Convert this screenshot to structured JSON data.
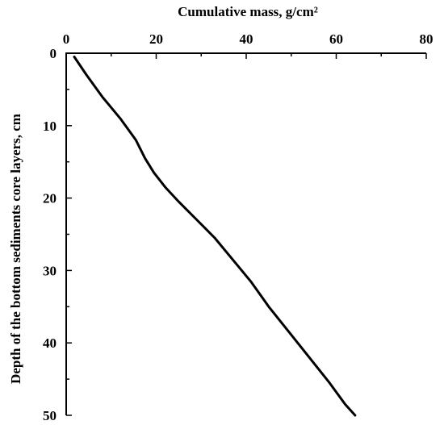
{
  "chart_data": {
    "type": "line",
    "title": "",
    "xlabel": "Cumulative mass, g/cm²",
    "ylabel": "Depth of the bottom sediments core layers, cm",
    "x_axis_position": "top",
    "y_axis_inverted": true,
    "xlim": [
      0,
      80
    ],
    "ylim": [
      0,
      50
    ],
    "x_ticks": [
      0,
      20,
      40,
      60,
      80
    ],
    "x_minor_ticks": [
      10,
      30,
      50,
      70
    ],
    "y_ticks": [
      0,
      10,
      20,
      30,
      40,
      50
    ],
    "y_minor_ticks": [
      5,
      15,
      25,
      35,
      45
    ],
    "grid": false,
    "series": [
      {
        "x": [
          1.8,
          4.5,
          8,
          12,
          15.5,
          17.5,
          19.5,
          22,
          25,
          29,
          33,
          37,
          41,
          45,
          49.5,
          54,
          58.5,
          62,
          64.2
        ],
        "y": [
          0.5,
          3,
          6,
          9,
          12,
          14.5,
          16.5,
          18.5,
          20.5,
          23,
          25.5,
          28.5,
          31.5,
          35,
          38.5,
          42,
          45.5,
          48.5,
          50
        ]
      }
    ]
  }
}
